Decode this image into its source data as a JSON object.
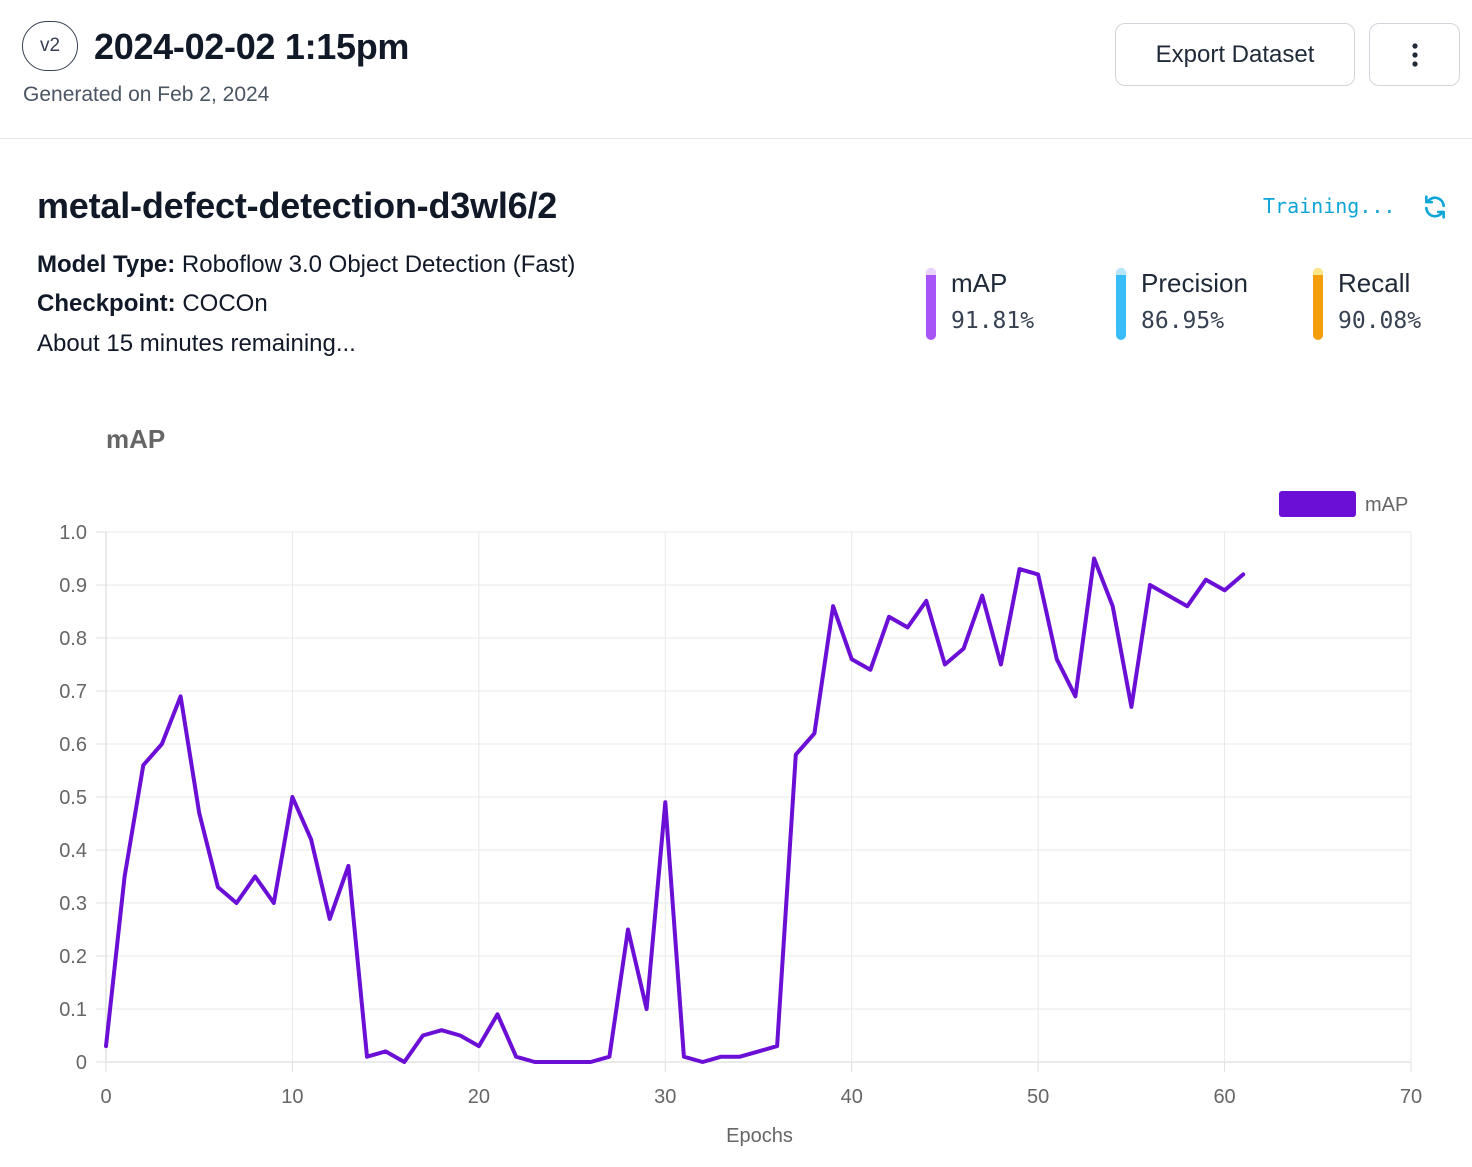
{
  "header": {
    "version": "v2",
    "title": "2024-02-02 1:15pm",
    "generated": "Generated on Feb 2, 2024",
    "export_label": "Export Dataset"
  },
  "model": {
    "name": "metal-defect-detection-d3wl6/2",
    "type_label": "Model Type:",
    "type_value": " Roboflow 3.0 Object Detection (Fast)",
    "checkpoint_label": "Checkpoint:",
    "checkpoint_value": " COCOn",
    "remaining": "About 15 minutes remaining...",
    "status": "Training..."
  },
  "metrics": [
    {
      "label": "mAP",
      "value": "91.81%",
      "color": "#a855f7",
      "cap_color": "#e9d5ff"
    },
    {
      "label": "Precision",
      "value": "86.95%",
      "color": "#38bdf8",
      "cap_color": "#bae6fd"
    },
    {
      "label": "Recall",
      "value": "90.08%",
      "color": "#f59e0b",
      "cap_color": "#fde68a"
    }
  ],
  "chart_data": {
    "type": "line",
    "title": "mAP",
    "xlabel": "Epochs",
    "ylabel": "",
    "xlim": [
      0,
      70
    ],
    "ylim": [
      0,
      1.0
    ],
    "xticks": [
      0,
      10,
      20,
      30,
      40,
      50,
      60,
      70
    ],
    "yticks": [
      0,
      0.1,
      0.2,
      0.3,
      0.4,
      0.5,
      0.6,
      0.7,
      0.8,
      0.9,
      1.0
    ],
    "ytick_labels": [
      "0",
      "0.1",
      "0.2",
      "0.3",
      "0.4",
      "0.5",
      "0.6",
      "0.7",
      "0.8",
      "0.9",
      "1.0"
    ],
    "grid": true,
    "legend": "top-right",
    "series": [
      {
        "name": "mAP",
        "color": "#6b0fd6",
        "x": [
          0,
          1,
          2,
          3,
          4,
          5,
          6,
          7,
          8,
          9,
          10,
          11,
          12,
          13,
          14,
          15,
          16,
          17,
          18,
          19,
          20,
          21,
          22,
          23,
          24,
          25,
          26,
          27,
          28,
          29,
          30,
          31,
          32,
          33,
          34,
          35,
          36,
          37,
          38,
          39,
          40,
          41,
          42,
          43,
          44,
          45,
          46,
          47,
          48,
          49,
          50,
          51,
          52,
          53,
          54,
          55,
          56,
          57,
          58,
          59,
          60,
          61
        ],
        "values": [
          0.03,
          0.35,
          0.56,
          0.6,
          0.69,
          0.47,
          0.33,
          0.3,
          0.35,
          0.3,
          0.5,
          0.42,
          0.27,
          0.37,
          0.01,
          0.02,
          0.0,
          0.05,
          0.06,
          0.05,
          0.03,
          0.09,
          0.01,
          0.0,
          0.0,
          0.0,
          0.0,
          0.01,
          0.25,
          0.1,
          0.49,
          0.01,
          0.0,
          0.01,
          0.01,
          0.02,
          0.03,
          0.58,
          0.62,
          0.86,
          0.76,
          0.74,
          0.84,
          0.82,
          0.87,
          0.75,
          0.78,
          0.88,
          0.75,
          0.93,
          0.92,
          0.76,
          0.69,
          0.95,
          0.86,
          0.67,
          0.9,
          0.88,
          0.86,
          0.91,
          0.89,
          0.92
        ]
      }
    ]
  }
}
